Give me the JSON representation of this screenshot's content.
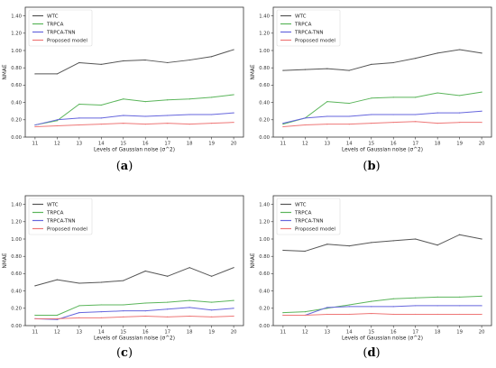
{
  "chart_data": [
    {
      "type": "line",
      "panel": "(a)",
      "caption_letter": "a",
      "xlabel": "Levels of Gaussian noise (σ^2)",
      "ylabel": "NMAE",
      "x": [
        11,
        12,
        13,
        14,
        15,
        16,
        17,
        18,
        19,
        20
      ],
      "ylim": [
        0.0,
        1.5
      ],
      "yticks": [
        "0.00",
        "0.20",
        "0.40",
        "0.60",
        "0.80",
        "1.00",
        "1.20",
        "1.40"
      ],
      "legend_position": "top-left",
      "grid": false,
      "series": [
        {
          "name": "WTC",
          "color": "#555555",
          "values": [
            0.73,
            0.73,
            0.86,
            0.84,
            0.88,
            0.89,
            0.86,
            0.89,
            0.93,
            1.01
          ]
        },
        {
          "name": "TRPCA",
          "color": "#5bb55b",
          "values": [
            0.14,
            0.19,
            0.38,
            0.37,
            0.44,
            0.41,
            0.43,
            0.44,
            0.46,
            0.49
          ]
        },
        {
          "name": "TRPCA-TNN",
          "color": "#6666dd",
          "values": [
            0.14,
            0.2,
            0.22,
            0.22,
            0.25,
            0.24,
            0.25,
            0.26,
            0.26,
            0.28
          ]
        },
        {
          "name": "Proposed model",
          "color": "#ee7777",
          "values": [
            0.12,
            0.13,
            0.14,
            0.15,
            0.16,
            0.15,
            0.16,
            0.15,
            0.16,
            0.17
          ]
        }
      ]
    },
    {
      "type": "line",
      "panel": "(b)",
      "caption_letter": "b",
      "xlabel": "Levels of Gaussian noise (σ^2)",
      "ylabel": "NMAE",
      "x": [
        11,
        12,
        13,
        14,
        15,
        16,
        17,
        18,
        19,
        20
      ],
      "ylim": [
        0.0,
        1.5
      ],
      "yticks": [
        "0.00",
        "0.20",
        "0.40",
        "0.60",
        "0.80",
        "1.00",
        "1.20",
        "1.40"
      ],
      "legend_position": "top-left",
      "grid": false,
      "series": [
        {
          "name": "WTC",
          "color": "#555555",
          "values": [
            0.77,
            0.78,
            0.79,
            0.77,
            0.84,
            0.86,
            0.91,
            0.97,
            1.01,
            0.97
          ]
        },
        {
          "name": "TRPCA",
          "color": "#5bb55b",
          "values": [
            0.15,
            0.22,
            0.41,
            0.39,
            0.45,
            0.46,
            0.46,
            0.51,
            0.48,
            0.52
          ]
        },
        {
          "name": "TRPCA-TNN",
          "color": "#6666dd",
          "values": [
            0.16,
            0.22,
            0.24,
            0.24,
            0.26,
            0.26,
            0.26,
            0.28,
            0.28,
            0.3
          ]
        },
        {
          "name": "Proposed model",
          "color": "#ee7777",
          "values": [
            0.12,
            0.14,
            0.15,
            0.15,
            0.16,
            0.17,
            0.18,
            0.16,
            0.17,
            0.17
          ]
        }
      ]
    },
    {
      "type": "line",
      "panel": "(c)",
      "caption_letter": "c",
      "xlabel": "Levels of Gaussian noise (σ^2)",
      "ylabel": "NMAE",
      "x": [
        11,
        12,
        13,
        14,
        15,
        16,
        17,
        18,
        19,
        20
      ],
      "ylim": [
        0.0,
        1.5
      ],
      "yticks": [
        "0.00",
        "0.20",
        "0.40",
        "0.60",
        "0.80",
        "1.00",
        "1.20",
        "1.40"
      ],
      "legend_position": "top-left",
      "grid": false,
      "series": [
        {
          "name": "WTC",
          "color": "#555555",
          "values": [
            0.46,
            0.53,
            0.49,
            0.5,
            0.52,
            0.63,
            0.57,
            0.67,
            0.57,
            0.67
          ]
        },
        {
          "name": "TRPCA",
          "color": "#5bb55b",
          "values": [
            0.12,
            0.12,
            0.23,
            0.24,
            0.24,
            0.26,
            0.27,
            0.29,
            0.27,
            0.29
          ]
        },
        {
          "name": "TRPCA-TNN",
          "color": "#6666dd",
          "values": [
            0.08,
            0.07,
            0.15,
            0.16,
            0.17,
            0.17,
            0.19,
            0.21,
            0.18,
            0.2
          ]
        },
        {
          "name": "Proposed model",
          "color": "#ee7777",
          "values": [
            0.08,
            0.08,
            0.09,
            0.09,
            0.1,
            0.11,
            0.1,
            0.11,
            0.1,
            0.11
          ]
        }
      ]
    },
    {
      "type": "line",
      "panel": "(d)",
      "caption_letter": "d",
      "xlabel": "Levels of Gaussian noise (σ^2)",
      "ylabel": "NMAE",
      "x": [
        11,
        12,
        13,
        14,
        15,
        16,
        17,
        18,
        19,
        20
      ],
      "ylim": [
        0.0,
        1.5
      ],
      "yticks": [
        "0.00",
        "0.20",
        "0.40",
        "0.60",
        "0.80",
        "1.00",
        "1.20",
        "1.40"
      ],
      "legend_position": "top-left",
      "grid": false,
      "series": [
        {
          "name": "WTC",
          "color": "#555555",
          "values": [
            0.87,
            0.86,
            0.94,
            0.92,
            0.96,
            0.98,
            1.0,
            0.93,
            1.05,
            1.0
          ]
        },
        {
          "name": "TRPCA",
          "color": "#5bb55b",
          "values": [
            0.15,
            0.16,
            0.2,
            0.24,
            0.28,
            0.31,
            0.32,
            0.33,
            0.33,
            0.34
          ]
        },
        {
          "name": "TRPCA-TNN",
          "color": "#6666dd",
          "values": [
            0.12,
            0.12,
            0.21,
            0.22,
            0.22,
            0.22,
            0.23,
            0.23,
            0.23,
            0.23
          ]
        },
        {
          "name": "Proposed model",
          "color": "#ee7777",
          "values": [
            0.12,
            0.12,
            0.13,
            0.13,
            0.14,
            0.13,
            0.13,
            0.13,
            0.13,
            0.13
          ]
        }
      ]
    }
  ]
}
